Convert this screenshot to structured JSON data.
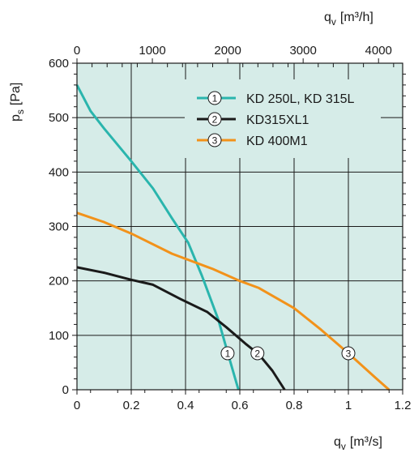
{
  "chart_data": {
    "type": "line",
    "title": "",
    "ylabel_main": "p",
    "ylabel_sub": "s",
    "ylabel_unit": "[Pa]",
    "xlabel_main": "q",
    "xlabel_sub": "v",
    "xlabel_unit": "[m³/s]",
    "x2label_main": "q",
    "x2label_sub": "v",
    "x2label_unit": "[m³/h]",
    "xlim": [
      0,
      1.2
    ],
    "ylim": [
      0,
      600
    ],
    "x2lim": [
      0,
      4320
    ],
    "x_ticks": [
      "0",
      "0.2",
      "0.4",
      "0.6",
      "0.8",
      "1",
      "1.2"
    ],
    "y_ticks": [
      "0",
      "100",
      "200",
      "300",
      "400",
      "500",
      "600"
    ],
    "x2_ticks": [
      "0",
      "1000",
      "2000",
      "3000",
      "4000"
    ],
    "grid": true,
    "legend_position": "top-right",
    "colors": {
      "plot_bg": "#d6ece8",
      "grid": "#1a1a1a",
      "axis": "#1a1a1a"
    },
    "series": [
      {
        "id": "1",
        "name": "KD 250L, KD 315L",
        "color": "#2ab5ad",
        "x": [
          0,
          0.05,
          0.1,
          0.2,
          0.28,
          0.35,
          0.41,
          0.46,
          0.52,
          0.56,
          0.595
        ],
        "y": [
          560,
          512,
          480,
          420,
          370,
          315,
          270,
          210,
          130,
          60,
          0
        ],
        "marker_at": [
          0.555,
          67
        ]
      },
      {
        "id": "2",
        "name": "KD315XL1",
        "color": "#1a1a1a",
        "x": [
          0,
          0.1,
          0.2,
          0.28,
          0.38,
          0.48,
          0.55,
          0.62,
          0.67,
          0.72,
          0.765
        ],
        "y": [
          225,
          215,
          202,
          193,
          167,
          143,
          115,
          85,
          65,
          35,
          0
        ],
        "marker_at": [
          0.665,
          67
        ]
      },
      {
        "id": "3",
        "name": "KD 400M1",
        "color": "#f2921a",
        "x": [
          0,
          0.1,
          0.2,
          0.35,
          0.5,
          0.6,
          0.67,
          0.8,
          0.9,
          1.0,
          1.1,
          1.15
        ],
        "y": [
          325,
          308,
          287,
          250,
          222,
          200,
          187,
          150,
          110,
          67,
          22,
          0
        ],
        "marker_at": [
          1.0,
          67
        ]
      }
    ]
  }
}
